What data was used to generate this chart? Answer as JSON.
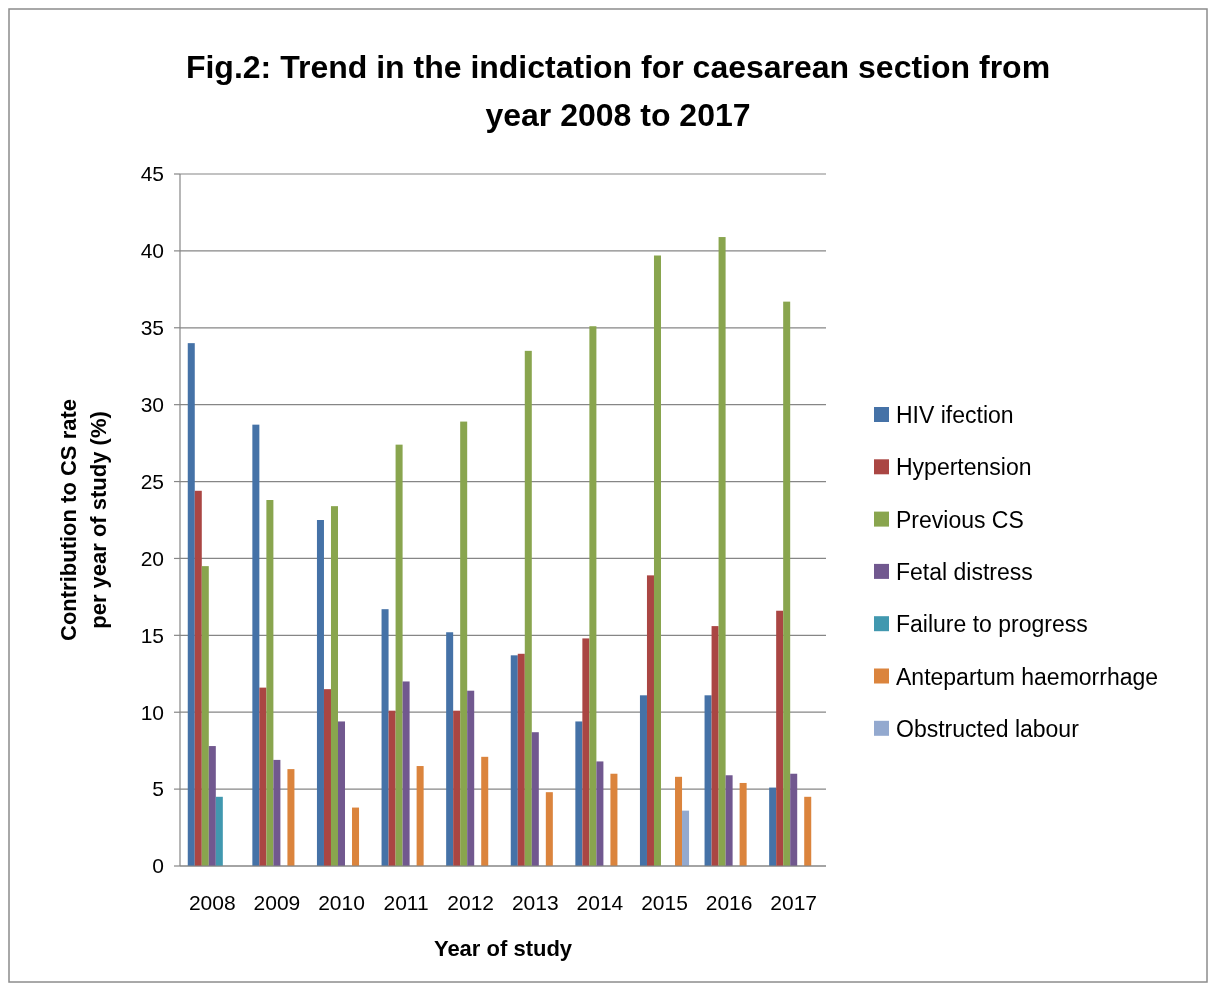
{
  "chart_data": {
    "type": "bar",
    "title": "Fig.2: Trend in the indictation for caesarean section from year 2008 to 2017",
    "xlabel": "Year of study",
    "ylabel": "Contribution to CS rate per year of study (%)",
    "categories": [
      "2008",
      "2009",
      "2010",
      "2011",
      "2012",
      "2013",
      "2014",
      "2015",
      "2016",
      "2017"
    ],
    "series": [
      {
        "name": "HIV ifection",
        "color": "#4572a7",
        "values": [
          34.0,
          28.7,
          22.5,
          16.7,
          15.2,
          13.7,
          9.4,
          11.1,
          11.1,
          5.1
        ]
      },
      {
        "name": "Hypertension",
        "color": "#aa4643",
        "values": [
          24.4,
          11.6,
          11.5,
          10.1,
          10.1,
          13.8,
          14.8,
          18.9,
          15.6,
          16.6
        ]
      },
      {
        "name": "Previous CS",
        "color": "#89a54e",
        "values": [
          19.5,
          23.8,
          23.4,
          27.4,
          28.9,
          33.5,
          35.1,
          39.7,
          40.9,
          36.7
        ]
      },
      {
        "name": "Fetal distress",
        "color": "#71588f",
        "values": [
          7.8,
          6.9,
          9.4,
          12.0,
          11.4,
          8.7,
          6.8,
          null,
          5.9,
          6.0
        ]
      },
      {
        "name": "Failure to progress",
        "color": "#4198af",
        "values": [
          4.5,
          null,
          null,
          null,
          null,
          null,
          null,
          null,
          null,
          null
        ]
      },
      {
        "name": "Antepartum haemorrhage",
        "color": "#db843d",
        "values": [
          null,
          6.3,
          3.8,
          6.5,
          7.1,
          4.8,
          6.0,
          5.8,
          5.4,
          4.5
        ]
      },
      {
        "name": "Obstructed labour",
        "color": "#93a9cf",
        "values": [
          null,
          null,
          null,
          null,
          null,
          null,
          null,
          3.6,
          null,
          null
        ]
      }
    ],
    "ylim": [
      0,
      45
    ],
    "yticks": [
      0,
      5,
      10,
      15,
      20,
      25,
      30,
      35,
      40,
      45
    ],
    "grid": "y",
    "legend": "right"
  }
}
